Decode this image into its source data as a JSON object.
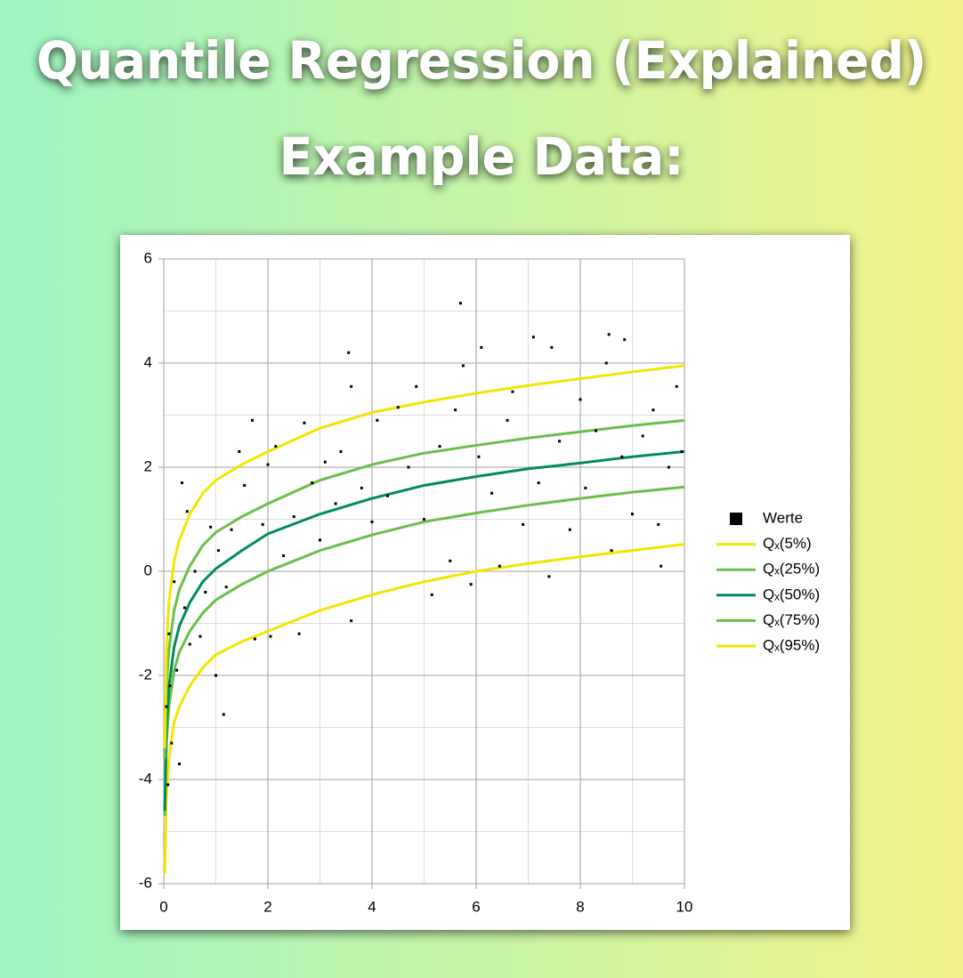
{
  "header": {
    "title": "Quantile Regression (Explained)",
    "subtitle": "Example Data:"
  },
  "chart_data": {
    "type": "scatter",
    "xlim": [
      0,
      10
    ],
    "ylim": [
      -6,
      6
    ],
    "xticks": [
      0,
      2,
      4,
      6,
      8,
      10
    ],
    "yticks": [
      -6,
      -4,
      -2,
      0,
      2,
      4,
      6
    ],
    "xminorticks": [
      1,
      3,
      5,
      7,
      9
    ],
    "yminorticks": [
      -5,
      -3,
      -1,
      1,
      3,
      5
    ],
    "grid": true,
    "legend": "right",
    "series": [
      {
        "name": "Werte",
        "type": "scatter",
        "color": "#000000",
        "x": [
          0.05,
          0.08,
          0.1,
          0.12,
          0.15,
          0.2,
          0.25,
          0.3,
          0.35,
          0.4,
          0.45,
          0.5,
          0.6,
          0.7,
          0.8,
          0.9,
          1.0,
          1.05,
          1.15,
          1.2,
          1.3,
          1.45,
          1.55,
          1.7,
          1.75,
          1.9,
          2.0,
          2.05,
          2.15,
          2.3,
          2.5,
          2.6,
          2.7,
          2.85,
          3.0,
          3.1,
          3.3,
          3.4,
          3.55,
          3.6,
          3.6,
          3.8,
          4.0,
          4.1,
          4.3,
          4.5,
          4.7,
          4.85,
          5.0,
          5.15,
          5.3,
          5.5,
          5.6,
          5.7,
          5.75,
          5.9,
          6.05,
          6.1,
          6.3,
          6.45,
          6.6,
          6.7,
          6.9,
          7.1,
          7.2,
          7.4,
          7.45,
          7.6,
          7.8,
          8.0,
          8.1,
          8.3,
          8.5,
          8.55,
          8.6,
          8.8,
          8.85,
          9.0,
          9.2,
          9.4,
          9.5,
          9.55,
          9.7,
          9.85,
          9.95
        ],
        "values": [
          -2.6,
          -4.1,
          -1.2,
          -2.2,
          -3.3,
          -0.2,
          -1.9,
          -3.7,
          1.7,
          -0.7,
          1.15,
          -1.4,
          0.0,
          -1.25,
          -0.4,
          0.85,
          -2.0,
          0.4,
          -2.75,
          -0.3,
          0.8,
          2.3,
          1.65,
          2.9,
          -1.3,
          0.9,
          2.05,
          -1.25,
          2.4,
          0.3,
          1.05,
          -1.2,
          2.85,
          1.7,
          0.6,
          2.1,
          1.3,
          2.3,
          4.2,
          -0.95,
          3.55,
          1.6,
          0.95,
          2.9,
          1.45,
          3.15,
          2.0,
          3.55,
          1.0,
          -0.45,
          2.4,
          0.2,
          3.1,
          5.15,
          3.95,
          -0.25,
          2.2,
          4.3,
          1.5,
          0.1,
          2.9,
          3.45,
          0.9,
          4.5,
          1.7,
          -0.1,
          4.3,
          2.5,
          0.8,
          3.3,
          1.6,
          2.7,
          4.0,
          4.55,
          0.4,
          2.2,
          4.45,
          1.1,
          2.6,
          3.1,
          0.9,
          0.1,
          2.0,
          3.55,
          2.3
        ]
      },
      {
        "name": "Qₓ(5%)",
        "type": "line",
        "color": "#f2e600",
        "x": [
          0.02,
          0.05,
          0.1,
          0.2,
          0.3,
          0.5,
          0.75,
          1,
          1.5,
          2,
          3,
          4,
          5,
          6,
          7,
          8,
          9,
          10
        ],
        "values": [
          -5.8,
          -4.4,
          -3.6,
          -2.9,
          -2.6,
          -2.2,
          -1.85,
          -1.6,
          -1.35,
          -1.15,
          -0.75,
          -0.45,
          -0.2,
          0.0,
          0.15,
          0.28,
          0.4,
          0.52
        ]
      },
      {
        "name": "Qₓ(25%)",
        "type": "line",
        "color": "#6abf4b",
        "x": [
          0.02,
          0.05,
          0.1,
          0.2,
          0.3,
          0.5,
          0.75,
          1,
          1.5,
          2,
          3,
          4,
          5,
          6,
          7,
          8,
          9,
          10
        ],
        "values": [
          -4.7,
          -3.3,
          -2.6,
          -1.9,
          -1.55,
          -1.15,
          -0.8,
          -0.55,
          -0.25,
          0.0,
          0.4,
          0.7,
          0.95,
          1.12,
          1.27,
          1.4,
          1.52,
          1.62
        ]
      },
      {
        "name": "Qₓ(50%)",
        "type": "line",
        "color": "#008c5a",
        "x": [
          0.02,
          0.05,
          0.1,
          0.2,
          0.3,
          0.5,
          0.75,
          1,
          1.5,
          2,
          3,
          4,
          5,
          6,
          7,
          8,
          9,
          10
        ],
        "values": [
          -4.6,
          -3.0,
          -2.2,
          -1.45,
          -1.05,
          -0.6,
          -0.2,
          0.05,
          0.4,
          0.72,
          1.1,
          1.4,
          1.65,
          1.82,
          1.97,
          2.08,
          2.2,
          2.3
        ]
      },
      {
        "name": "Qₓ(75%)",
        "type": "line",
        "color": "#6abf4b",
        "x": [
          0.02,
          0.05,
          0.1,
          0.2,
          0.3,
          0.5,
          0.75,
          1,
          1.5,
          2,
          3,
          4,
          5,
          6,
          7,
          8,
          9,
          10
        ],
        "values": [
          -3.6,
          -2.2,
          -1.5,
          -0.75,
          -0.35,
          0.1,
          0.5,
          0.75,
          1.05,
          1.3,
          1.75,
          2.05,
          2.27,
          2.42,
          2.56,
          2.68,
          2.8,
          2.9
        ]
      },
      {
        "name": "Qₓ(95%)",
        "type": "line",
        "color": "#f2e600",
        "x": [
          0.02,
          0.05,
          0.1,
          0.2,
          0.3,
          0.5,
          0.75,
          1,
          1.5,
          2,
          3,
          4,
          5,
          6,
          7,
          8,
          9,
          10
        ],
        "values": [
          -3.4,
          -1.5,
          -0.6,
          0.2,
          0.6,
          1.1,
          1.5,
          1.75,
          2.05,
          2.3,
          2.75,
          3.05,
          3.25,
          3.42,
          3.57,
          3.7,
          3.83,
          3.95
        ]
      }
    ]
  }
}
